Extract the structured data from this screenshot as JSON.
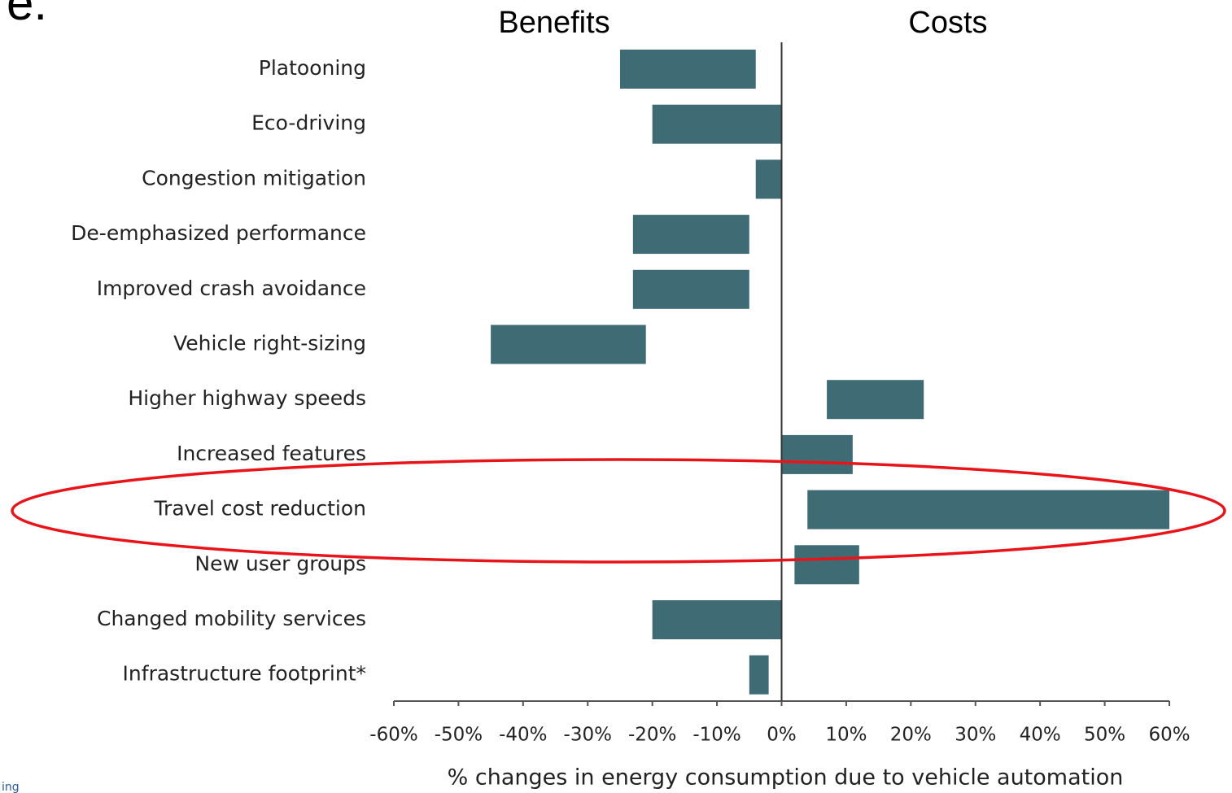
{
  "corner_text": "e.",
  "footer_text": "ing",
  "chart_data": {
    "type": "range_bar",
    "annotations": [
      "Benefits",
      "Costs"
    ],
    "xlabel": "% changes in energy consumption due to vehicle automation",
    "categories": [
      "Platooning",
      "Eco-driving",
      "Congestion mitigation",
      "De-emphasized performance",
      "Improved crash avoidance",
      "Vehicle right-sizing",
      "Higher highway speeds",
      "Increased features",
      "Travel cost reduction",
      "New user groups",
      "Changed mobility services",
      "Infrastructure  footprint*"
    ],
    "starts": [
      -25,
      -20,
      -4,
      -23,
      -23,
      -45,
      7,
      0,
      4,
      2,
      -20,
      -5
    ],
    "ends": [
      -4,
      0,
      0,
      -5,
      -5,
      -21,
      22,
      11,
      60,
      12,
      0,
      -2
    ],
    "color": "#3f6b75",
    "xlim": [
      -60,
      60
    ],
    "xticks": [
      {
        "value": -60,
        "label": "-60%"
      },
      {
        "value": -50,
        "label": "-50%"
      },
      {
        "value": -40,
        "label": "-40%"
      },
      {
        "value": -30,
        "label": "-30%"
      },
      {
        "value": -20,
        "label": "-20%"
      },
      {
        "value": -10,
        "label": "-10%"
      },
      {
        "value": 0,
        "label": "0%"
      },
      {
        "value": 10,
        "label": "10%"
      },
      {
        "value": 20,
        "label": "20%"
      },
      {
        "value": 30,
        "label": "30%"
      },
      {
        "value": 40,
        "label": "40%"
      },
      {
        "value": 50,
        "label": "50%"
      },
      {
        "value": 60,
        "label": "60%"
      }
    ]
  }
}
